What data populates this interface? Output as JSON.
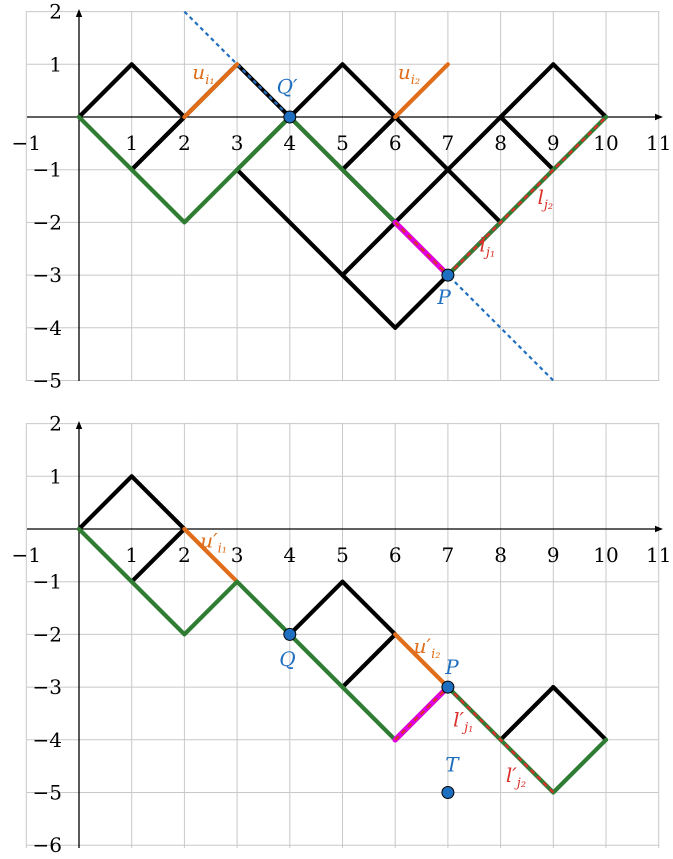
{
  "colors": {
    "black": "#000000",
    "green": "#2e7d32",
    "orange": "#e06d1a",
    "magenta": "#e100e1",
    "red": "#d9302b",
    "blue": "#1f6fc0",
    "point_fill": "#1f6fc0"
  },
  "panels": [
    {
      "id": "top",
      "xlim": [
        -1,
        11
      ],
      "ylim": [
        -5,
        2
      ],
      "x_ticks": [
        -1,
        1,
        2,
        3,
        4,
        5,
        6,
        7,
        8,
        9,
        10,
        11
      ],
      "y_ticks": [
        2,
        1,
        -1,
        -2,
        -3,
        -4,
        -5
      ],
      "x_tick_labels": [
        "−1",
        "1",
        "2",
        "3",
        "4",
        "5",
        "6",
        "7",
        "8",
        "9",
        "10",
        "11"
      ],
      "y_tick_labels": [
        "2",
        "1",
        "−1",
        "−2",
        "−3",
        "−4",
        "−5"
      ],
      "black_segments": [
        [
          [
            0,
            0
          ],
          [
            1,
            1
          ]
        ],
        [
          [
            1,
            1
          ],
          [
            2,
            0
          ]
        ],
        [
          [
            2,
            0
          ],
          [
            1,
            -1
          ]
        ],
        [
          [
            3,
            -1
          ],
          [
            4,
            0
          ]
        ],
        [
          [
            4,
            0
          ],
          [
            5,
            1
          ]
        ],
        [
          [
            5,
            1
          ],
          [
            6,
            0
          ]
        ],
        [
          [
            6,
            0
          ],
          [
            5,
            -1
          ]
        ],
        [
          [
            5,
            -1
          ],
          [
            6,
            -2
          ]
        ],
        [
          [
            6,
            -2
          ],
          [
            7,
            -1
          ]
        ],
        [
          [
            7,
            -1
          ],
          [
            8,
            0
          ]
        ],
        [
          [
            8,
            0
          ],
          [
            9,
            1
          ]
        ],
        [
          [
            9,
            1
          ],
          [
            10,
            0
          ]
        ],
        [
          [
            8,
            0
          ],
          [
            9,
            -1
          ]
        ],
        [
          [
            3,
            -1
          ],
          [
            5,
            -3
          ]
        ],
        [
          [
            5,
            -3
          ],
          [
            6,
            -2
          ]
        ],
        [
          [
            5,
            -3
          ],
          [
            6,
            -4
          ]
        ],
        [
          [
            6,
            -4
          ],
          [
            8,
            -2
          ]
        ],
        [
          [
            7,
            -1
          ],
          [
            8,
            -2
          ]
        ],
        [
          [
            5,
            -1
          ],
          [
            6,
            0
          ]
        ],
        [
          [
            6,
            0
          ],
          [
            7,
            -1
          ]
        ]
      ],
      "dark_chain": [
        [
          1,
          -1
        ],
        [
          2,
          0
        ],
        [
          3,
          1
        ],
        [
          4,
          0
        ],
        [
          5,
          -1
        ],
        [
          6,
          -2
        ],
        [
          7,
          -3
        ]
      ],
      "orange_segments": [
        [
          [
            2,
            0
          ],
          [
            3,
            1
          ]
        ],
        [
          [
            6,
            0
          ],
          [
            7,
            1
          ]
        ]
      ],
      "green_paths": [
        [
          [
            0,
            0
          ],
          [
            2,
            -2
          ],
          [
            4,
            0
          ],
          [
            5,
            -1
          ],
          [
            6,
            -2
          ]
        ],
        [
          [
            7,
            -3
          ],
          [
            10,
            0
          ]
        ]
      ],
      "magenta_segments": [
        [
          [
            6,
            -2
          ],
          [
            7,
            -3
          ]
        ]
      ],
      "red_dashed": [
        [
          [
            7,
            -3
          ],
          [
            10,
            0
          ]
        ],
        [
          [
            6,
            -2
          ],
          [
            7,
            -3
          ]
        ]
      ],
      "blue_dotted": [
        [
          [
            2,
            2
          ],
          [
            9,
            -5
          ]
        ]
      ],
      "points": [
        {
          "name": "Q'",
          "x": 4,
          "y": 0
        },
        {
          "name": "P",
          "x": 7,
          "y": -3
        }
      ],
      "labels": [
        {
          "key": "u_i1",
          "base": "u",
          "sub": "i₁",
          "color": "orange",
          "x": 2.15,
          "y": 0.72
        },
        {
          "key": "u_i2",
          "base": "u",
          "sub": "i₂",
          "color": "orange",
          "x": 6.05,
          "y": 0.72
        },
        {
          "key": "Qp",
          "base": "Q′",
          "sub": "",
          "color": "blue",
          "x": 3.75,
          "y": 0.45
        },
        {
          "key": "P",
          "base": "P",
          "sub": "",
          "color": "blue",
          "x": 6.8,
          "y": -3.55
        },
        {
          "key": "l_j1",
          "base": "l",
          "sub": "j₁",
          "color": "red",
          "x": 7.6,
          "y": -2.55
        },
        {
          "key": "l_j2",
          "base": "l",
          "sub": "j₂",
          "color": "red",
          "x": 8.7,
          "y": -1.65
        }
      ]
    },
    {
      "id": "bottom",
      "xlim": [
        -1,
        11
      ],
      "ylim": [
        -6,
        2
      ],
      "x_ticks": [
        -1,
        1,
        2,
        3,
        4,
        5,
        6,
        7,
        8,
        9,
        10,
        11
      ],
      "y_ticks": [
        2,
        1,
        -1,
        -2,
        -3,
        -4,
        -5,
        -6
      ],
      "x_tick_labels": [
        "−1",
        "1",
        "2",
        "3",
        "4",
        "5",
        "6",
        "7",
        "8",
        "9",
        "10",
        "11"
      ],
      "y_tick_labels": [
        "2",
        "1",
        "−1",
        "−2",
        "−3",
        "−4",
        "−5",
        "−6"
      ],
      "black_segments": [
        [
          [
            0,
            0
          ],
          [
            1,
            1
          ]
        ],
        [
          [
            1,
            1
          ],
          [
            2,
            0
          ]
        ],
        [
          [
            2,
            0
          ],
          [
            1,
            -1
          ]
        ],
        [
          [
            4,
            -2
          ],
          [
            5,
            -1
          ]
        ],
        [
          [
            5,
            -1
          ],
          [
            6,
            -2
          ]
        ],
        [
          [
            6,
            -2
          ],
          [
            5,
            -3
          ]
        ],
        [
          [
            7,
            -3
          ],
          [
            6,
            -4
          ]
        ],
        [
          [
            8,
            -4
          ],
          [
            9,
            -3
          ]
        ],
        [
          [
            9,
            -3
          ],
          [
            10,
            -4
          ]
        ]
      ],
      "orange_segments": [
        [
          [
            2,
            0
          ],
          [
            3,
            -1
          ]
        ],
        [
          [
            6,
            -2
          ],
          [
            7,
            -3
          ]
        ]
      ],
      "green_paths": [
        [
          [
            0,
            0
          ],
          [
            2,
            -2
          ],
          [
            3,
            -1
          ],
          [
            6,
            -4
          ],
          [
            7,
            -3
          ],
          [
            9,
            -5
          ],
          [
            10,
            -4
          ]
        ]
      ],
      "magenta_segments": [
        [
          [
            6,
            -4
          ],
          [
            7,
            -3
          ]
        ]
      ],
      "red_dashed": [
        [
          [
            7,
            -3
          ],
          [
            9,
            -5
          ]
        ],
        [
          [
            6,
            -4
          ],
          [
            7,
            -3
          ]
        ]
      ],
      "points": [
        {
          "name": "Q",
          "x": 4,
          "y": -2
        },
        {
          "name": "P",
          "x": 7,
          "y": -3
        },
        {
          "name": "T",
          "x": 7,
          "y": -5
        }
      ],
      "labels": [
        {
          "key": "up_i1",
          "base": "u′",
          "sub": "i₁",
          "color": "orange",
          "x": 2.3,
          "y": -0.35
        },
        {
          "key": "up_i2",
          "base": "u′",
          "sub": "i₂",
          "color": "orange",
          "x": 6.35,
          "y": -2.35
        },
        {
          "key": "Q",
          "base": "Q",
          "sub": "",
          "color": "blue",
          "x": 3.8,
          "y": -2.6
        },
        {
          "key": "P",
          "base": "P",
          "sub": "",
          "color": "blue",
          "x": 6.95,
          "y": -2.75
        },
        {
          "key": "T",
          "base": "T",
          "sub": "",
          "color": "blue",
          "x": 6.95,
          "y": -4.6
        },
        {
          "key": "lp_j1",
          "base": "l′",
          "sub": "j₁",
          "color": "red",
          "x": 7.1,
          "y": -3.75
        },
        {
          "key": "lp_j2",
          "base": "l′",
          "sub": "j₂",
          "color": "red",
          "x": 8.1,
          "y": -4.8
        }
      ]
    }
  ]
}
